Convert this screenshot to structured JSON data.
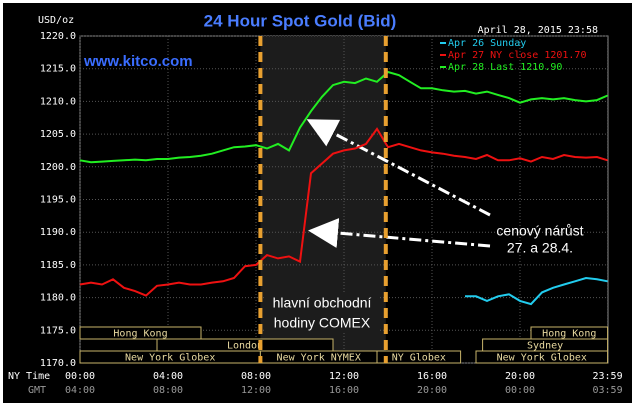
{
  "chart_data": {
    "type": "line",
    "title": "24 Hour Spot Gold (Bid)",
    "date_label": "April 28, 2015 23:58",
    "site": "www.kitco.com",
    "y_axis_label": "USD/oz",
    "x_axis_label": "NY Time",
    "x2_axis_label": "GMT",
    "x": [
      0,
      0.5,
      1,
      1.5,
      2,
      2.5,
      3,
      3.5,
      4,
      4.5,
      5,
      5.5,
      6,
      6.5,
      7,
      7.5,
      8,
      8.5,
      9,
      9.5,
      10,
      10.5,
      11,
      11.5,
      12,
      12.5,
      13,
      13.5,
      14,
      14.5,
      15,
      15.5,
      16,
      16.5,
      17,
      17.5,
      18,
      18.5,
      19,
      19.5,
      20,
      20.5,
      21,
      21.5,
      22,
      22.5,
      23,
      23.5,
      23.98
    ],
    "series": [
      {
        "name": "Apr 26 Sunday",
        "color": "#22ccee",
        "values": [
          null,
          null,
          null,
          null,
          null,
          null,
          null,
          null,
          null,
          null,
          null,
          null,
          null,
          null,
          null,
          null,
          null,
          null,
          null,
          null,
          null,
          null,
          null,
          null,
          null,
          null,
          null,
          null,
          null,
          null,
          null,
          null,
          null,
          null,
          null,
          1180.2,
          1180.2,
          1179.5,
          1180.2,
          1180.5,
          1179.5,
          1179.0,
          1180.8,
          1181.5,
          1182.0,
          1182.5,
          1183.0,
          1182.8,
          1182.5
        ]
      },
      {
        "name": "Apr 27 NY close 1201.70",
        "color": "#ee1111",
        "values": [
          1182.0,
          1182.3,
          1182.0,
          1182.8,
          1181.5,
          1181.0,
          1180.3,
          1181.8,
          1182.0,
          1182.3,
          1182.0,
          1182.0,
          1182.3,
          1182.5,
          1183.0,
          1184.8,
          1185.0,
          1186.5,
          1186.0,
          1186.3,
          1185.5,
          1199.0,
          1200.5,
          1202.0,
          1202.5,
          1202.8,
          1203.5,
          1205.8,
          1203.0,
          1203.5,
          1203.0,
          1202.5,
          1202.2,
          1202.0,
          1201.7,
          1201.5,
          1201.2,
          1201.8,
          1201.0,
          1201.0,
          1201.3,
          1200.8,
          1201.5,
          1201.2,
          1201.8,
          1201.5,
          1201.4,
          1201.5,
          1201.0
        ]
      },
      {
        "name": "Apr 28 Last 1210.90",
        "color": "#22ee22",
        "values": [
          1201.0,
          1200.7,
          1200.8,
          1200.9,
          1201.0,
          1201.1,
          1201.0,
          1201.2,
          1201.2,
          1201.4,
          1201.5,
          1201.7,
          1202.0,
          1202.5,
          1203.0,
          1203.1,
          1203.3,
          1202.8,
          1203.5,
          1202.5,
          1206.0,
          1208.5,
          1210.7,
          1212.5,
          1213.0,
          1212.8,
          1213.5,
          1213.0,
          1214.5,
          1214.0,
          1213.0,
          1212.0,
          1212.0,
          1211.7,
          1211.5,
          1211.6,
          1211.2,
          1211.5,
          1211.0,
          1210.5,
          1209.8,
          1210.3,
          1210.5,
          1210.3,
          1210.5,
          1210.2,
          1210.0,
          1210.2,
          1210.9
        ]
      }
    ],
    "xlim": [
      0,
      24
    ],
    "ylim": [
      1170,
      1220
    ],
    "yticks": [
      {
        "value": 1170,
        "label": "1170.0"
      },
      {
        "value": 1175,
        "label": "1175.0"
      },
      {
        "value": 1180,
        "label": "1180.0"
      },
      {
        "value": 1185,
        "label": "1185.0"
      },
      {
        "value": 1190,
        "label": "1190.0"
      },
      {
        "value": 1195,
        "label": "1195.0"
      },
      {
        "value": 1200,
        "label": "1200.0"
      },
      {
        "value": 1205,
        "label": "1205.0"
      },
      {
        "value": 1210,
        "label": "1210.0"
      },
      {
        "value": 1215,
        "label": "1215.0"
      },
      {
        "value": 1220,
        "label": "1220.0"
      }
    ],
    "xticks": [
      {
        "value": 0,
        "label": "00:00"
      },
      {
        "value": 4,
        "label": "04:00"
      },
      {
        "value": 8,
        "label": "08:00"
      },
      {
        "value": 12,
        "label": "12:00"
      },
      {
        "value": 16,
        "label": "16:00"
      },
      {
        "value": 20,
        "label": "20:00"
      },
      {
        "value": 23.98,
        "label": "23:59"
      }
    ],
    "x2ticks": [
      {
        "value": 0,
        "label": "04:00"
      },
      {
        "value": 4,
        "label": "08:00"
      },
      {
        "value": 8,
        "label": "12:00"
      },
      {
        "value": 12,
        "label": "16:00"
      },
      {
        "value": 16,
        "label": "20:00"
      },
      {
        "value": 20,
        "label": "00:00"
      },
      {
        "value": 23.98,
        "label": "03:59"
      }
    ],
    "grid": true,
    "comex_hours": [
      8.2,
      13.9
    ],
    "comex_label": [
      "hlavní obchodní",
      "hodiny COMEX"
    ],
    "annotation": [
      "cenový nárůst",
      "27. a 28.4."
    ],
    "sessions": [
      {
        "label": "Hong Kong",
        "start": 0,
        "end": 5.5,
        "row": 1
      },
      {
        "label": "London",
        "start": 3.5,
        "end": 11.5,
        "row": 2
      },
      {
        "label": "New York Globex",
        "start": 0,
        "end": 8.2,
        "row": 3
      },
      {
        "label": "New York NYMEX",
        "start": 8.2,
        "end": 13.5,
        "row": 3
      },
      {
        "label": "NY Globex",
        "start": 13.5,
        "end": 17.3,
        "row": 3
      },
      {
        "label": "Sydney",
        "start": 18.3,
        "end": 23.98,
        "row": 2
      },
      {
        "label": "Hong Kong",
        "start": 20.5,
        "end": 23.98,
        "row": 1
      },
      {
        "label": "New York Globex",
        "start": 18,
        "end": 23.98,
        "row": 3
      }
    ]
  }
}
